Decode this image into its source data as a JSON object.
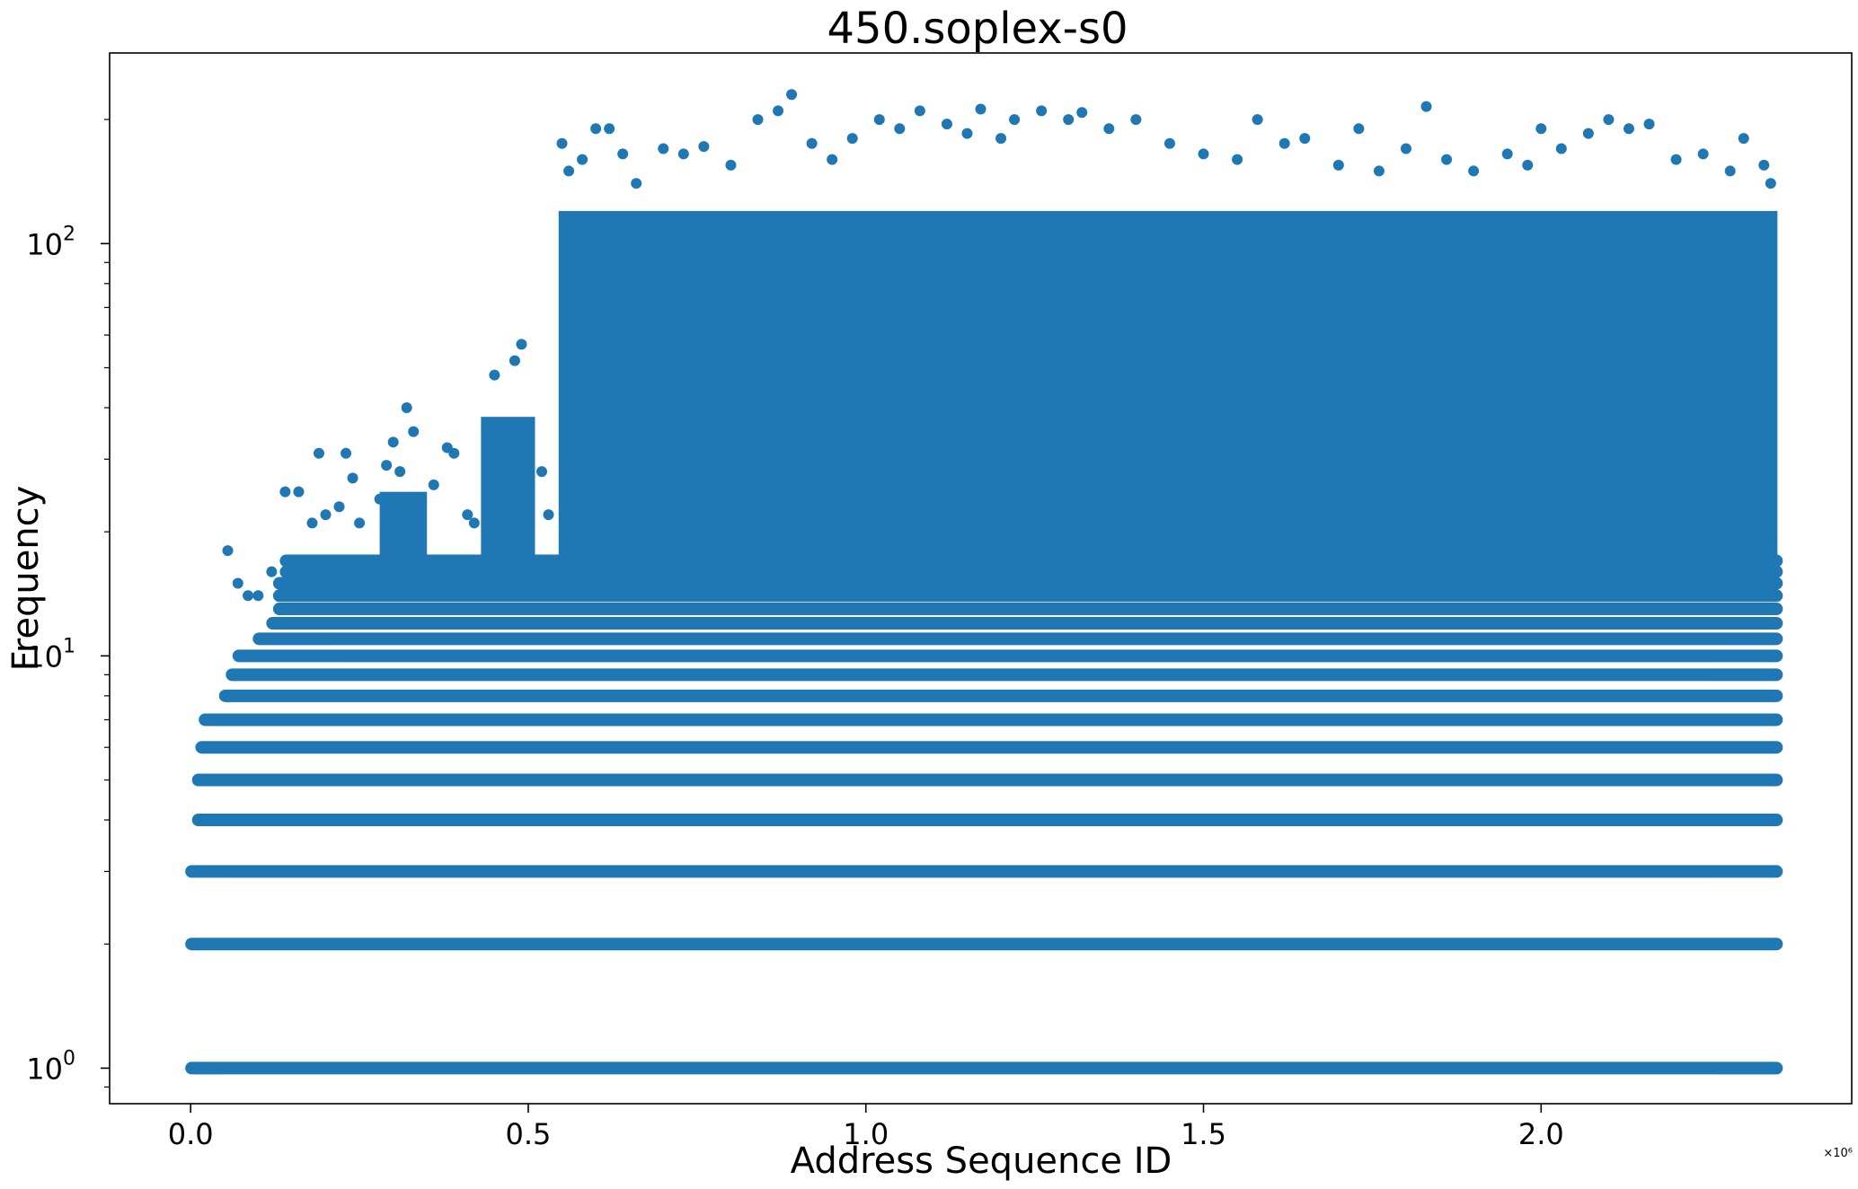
{
  "chart_data": {
    "type": "scatter",
    "title": "450.soplex-s0",
    "xlabel": "Address Sequence ID",
    "ylabel": "Frequency",
    "x_offset_label": "×10⁶",
    "xlim": [
      -0.12,
      2.46
    ],
    "ylim": [
      0.82,
      290
    ],
    "yscale": "log",
    "grid": false,
    "marker_color": "#1f77b4",
    "x_ticks": [
      {
        "value": 0.0,
        "label": "0.0"
      },
      {
        "value": 0.5,
        "label": "0.5"
      },
      {
        "value": 1.0,
        "label": "1.0"
      },
      {
        "value": 1.5,
        "label": "1.5"
      },
      {
        "value": 2.0,
        "label": "2.0"
      }
    ],
    "y_ticks": [
      {
        "value": 1,
        "base": "10",
        "exp": "0"
      },
      {
        "value": 10,
        "base": "10",
        "exp": "1"
      },
      {
        "value": 100,
        "base": "10",
        "exp": "2"
      }
    ],
    "y_minor_ticks": [
      0.9,
      2,
      3,
      4,
      5,
      6,
      7,
      8,
      9,
      20,
      30,
      40,
      50,
      60,
      70,
      80,
      90,
      200
    ],
    "series": [
      {
        "bands": [
          {
            "y": 1,
            "x_start": 0.0,
            "x_end": 2.35
          },
          {
            "y": 2,
            "x_start": 0.0,
            "x_end": 2.35
          },
          {
            "y": 3,
            "x_start": 0.0,
            "x_end": 2.35
          },
          {
            "y": 4,
            "x_start": 0.01,
            "x_end": 2.35
          },
          {
            "y": 5,
            "x_start": 0.01,
            "x_end": 2.35
          },
          {
            "y": 6,
            "x_start": 0.015,
            "x_end": 2.35
          },
          {
            "y": 7,
            "x_start": 0.02,
            "x_end": 2.35
          },
          {
            "y": 8,
            "x_start": 0.05,
            "x_end": 2.35
          },
          {
            "y": 9,
            "x_start": 0.06,
            "x_end": 2.35
          },
          {
            "y": 10,
            "x_start": 0.07,
            "x_end": 2.35
          },
          {
            "y": 11,
            "x_start": 0.1,
            "x_end": 2.35
          },
          {
            "y": 12,
            "x_start": 0.12,
            "x_end": 2.35
          },
          {
            "y": 13,
            "x_start": 0.13,
            "x_end": 2.35
          },
          {
            "y": 14,
            "x_start": 0.13,
            "x_end": 2.35
          },
          {
            "y": 15,
            "x_start": 0.13,
            "x_end": 2.35
          },
          {
            "y": 16,
            "x_start": 0.14,
            "x_end": 2.35
          },
          {
            "y": 17,
            "x_start": 0.14,
            "x_end": 2.35
          }
        ],
        "dense_regions": [
          {
            "x_start": 0.545,
            "x_end": 2.35,
            "y_min": 17,
            "y_max": 120
          },
          {
            "x_start": 0.43,
            "x_end": 0.51,
            "y_min": 17,
            "y_max": 38
          },
          {
            "x_start": 0.28,
            "x_end": 0.35,
            "y_min": 17,
            "y_max": 25
          }
        ],
        "sparse_points": [
          [
            0.055,
            18
          ],
          [
            0.07,
            15
          ],
          [
            0.085,
            14
          ],
          [
            0.1,
            14
          ],
          [
            0.12,
            16
          ],
          [
            0.14,
            25
          ],
          [
            0.16,
            25
          ],
          [
            0.18,
            21
          ],
          [
            0.19,
            31
          ],
          [
            0.2,
            22
          ],
          [
            0.22,
            23
          ],
          [
            0.23,
            31
          ],
          [
            0.24,
            27
          ],
          [
            0.25,
            21
          ],
          [
            0.28,
            24
          ],
          [
            0.29,
            29
          ],
          [
            0.3,
            33
          ],
          [
            0.31,
            28
          ],
          [
            0.32,
            40
          ],
          [
            0.33,
            35
          ],
          [
            0.34,
            24
          ],
          [
            0.36,
            26
          ],
          [
            0.38,
            32
          ],
          [
            0.39,
            31
          ],
          [
            0.41,
            22
          ],
          [
            0.42,
            21
          ],
          [
            0.45,
            48
          ],
          [
            0.48,
            52
          ],
          [
            0.49,
            57
          ],
          [
            0.5,
            30
          ],
          [
            0.52,
            28
          ],
          [
            0.53,
            22
          ],
          [
            0.55,
            175
          ],
          [
            0.56,
            150
          ],
          [
            0.58,
            160
          ],
          [
            0.6,
            190
          ],
          [
            0.62,
            190
          ],
          [
            0.64,
            165
          ],
          [
            0.66,
            140
          ],
          [
            0.7,
            170
          ],
          [
            0.73,
            165
          ],
          [
            0.76,
            172
          ],
          [
            0.8,
            155
          ],
          [
            0.84,
            200
          ],
          [
            0.87,
            210
          ],
          [
            0.89,
            230
          ],
          [
            0.92,
            175
          ],
          [
            0.95,
            160
          ],
          [
            0.98,
            180
          ],
          [
            1.02,
            200
          ],
          [
            1.05,
            190
          ],
          [
            1.08,
            210
          ],
          [
            1.12,
            195
          ],
          [
            1.15,
            185
          ],
          [
            1.17,
            212
          ],
          [
            1.2,
            180
          ],
          [
            1.22,
            200
          ],
          [
            1.26,
            210
          ],
          [
            1.3,
            200
          ],
          [
            1.32,
            208
          ],
          [
            1.36,
            190
          ],
          [
            1.4,
            200
          ],
          [
            1.45,
            175
          ],
          [
            1.5,
            165
          ],
          [
            1.55,
            160
          ],
          [
            1.58,
            200
          ],
          [
            1.62,
            175
          ],
          [
            1.65,
            180
          ],
          [
            1.7,
            155
          ],
          [
            1.73,
            190
          ],
          [
            1.76,
            150
          ],
          [
            1.8,
            170
          ],
          [
            1.83,
            215
          ],
          [
            1.86,
            160
          ],
          [
            1.9,
            150
          ],
          [
            1.95,
            165
          ],
          [
            1.98,
            155
          ],
          [
            2.0,
            190
          ],
          [
            2.03,
            170
          ],
          [
            2.07,
            185
          ],
          [
            2.1,
            200
          ],
          [
            2.13,
            190
          ],
          [
            2.16,
            195
          ],
          [
            2.2,
            160
          ],
          [
            2.24,
            165
          ],
          [
            2.28,
            150
          ],
          [
            2.3,
            180
          ],
          [
            2.33,
            155
          ],
          [
            2.34,
            140
          ]
        ]
      }
    ]
  }
}
